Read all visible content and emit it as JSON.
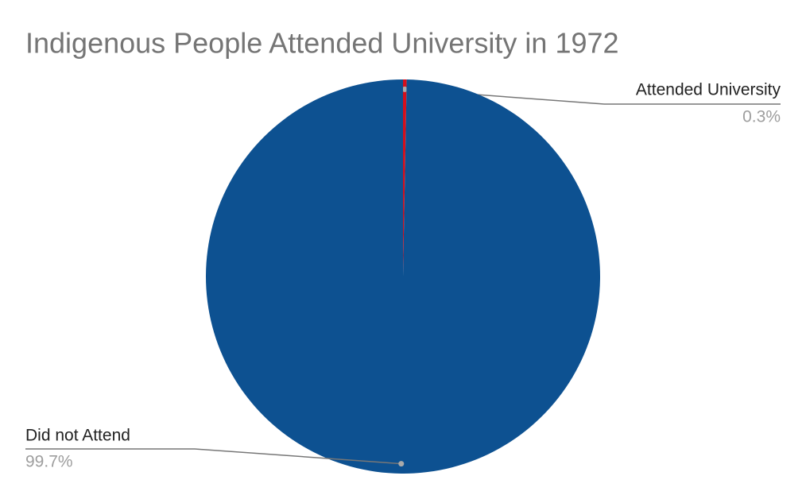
{
  "chart_data": {
    "type": "pie",
    "title": "Indigenous People Attended University in 1972",
    "categories": [
      "Attended University",
      "Did not Attend"
    ],
    "values": [
      0.3,
      99.7
    ],
    "value_labels": [
      "0.3%",
      "99.7%"
    ],
    "colors": [
      "#d50f1c",
      "#0d5191"
    ]
  }
}
